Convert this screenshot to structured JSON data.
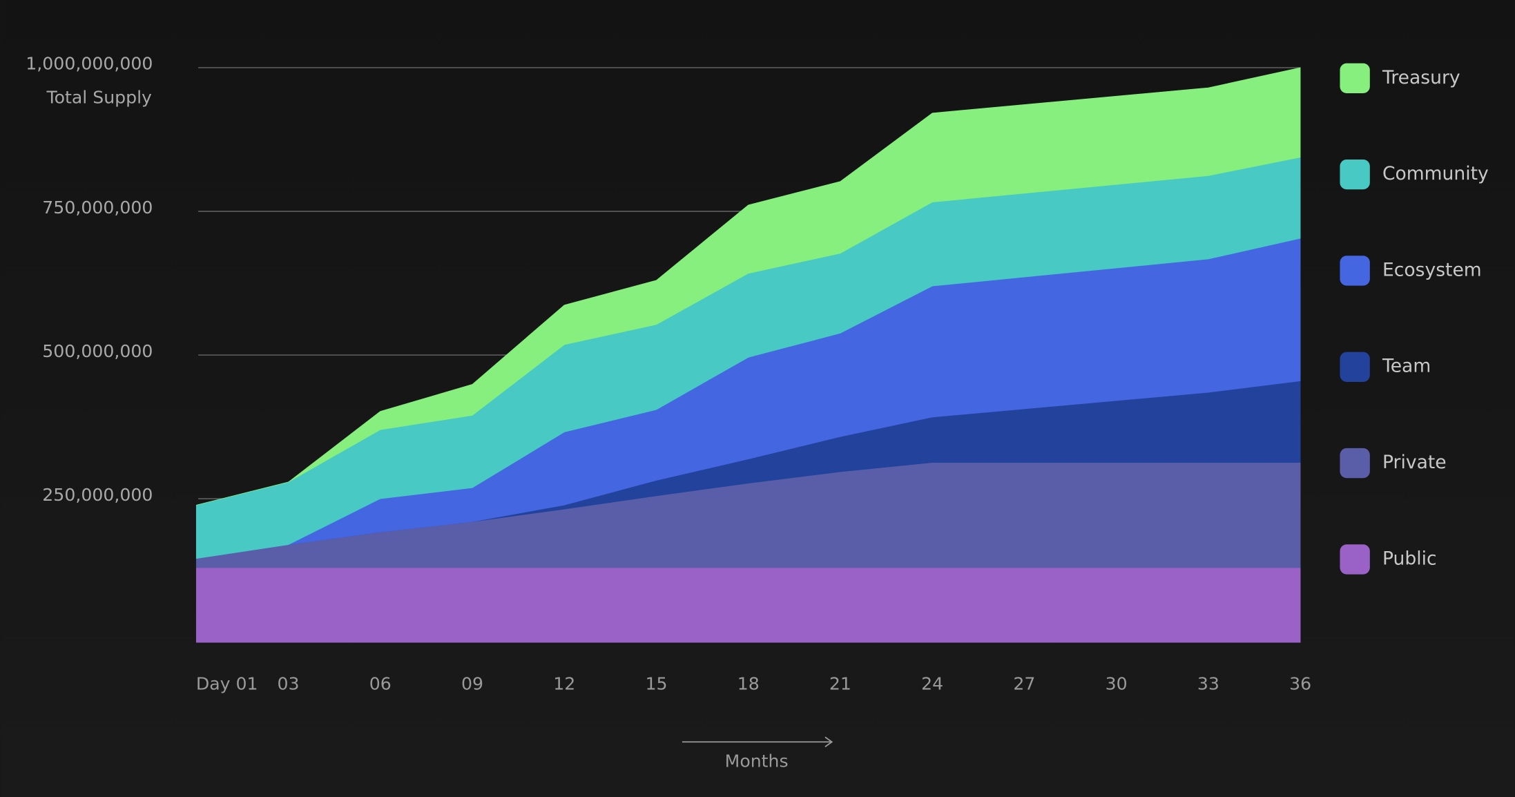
{
  "chart_data": {
    "type": "stacked-area",
    "ylabel": "Total Supply",
    "xlabel": "Months",
    "x": [
      0,
      3,
      6,
      9,
      12,
      15,
      18,
      21,
      24,
      33,
      36
    ],
    "xlim": [
      0,
      36
    ],
    "xticks": [
      {
        "value": 1,
        "label": "Day 01"
      },
      {
        "value": 3,
        "label": "03"
      },
      {
        "value": 6,
        "label": "06"
      },
      {
        "value": 9,
        "label": "09"
      },
      12,
      15,
      18,
      21,
      24,
      27,
      30,
      33,
      36
    ],
    "ylim": [
      0,
      1000000000
    ],
    "yticks": [
      {
        "value": 250000000,
        "label": "250,000,000"
      },
      {
        "value": 500000000,
        "label": "500,000,000"
      },
      {
        "value": 750000000,
        "label": "750,000,000"
      },
      {
        "value": 1000000000,
        "label": "1,000,000,000"
      }
    ],
    "grid": true,
    "series": [
      {
        "name": "Public",
        "color": "#9a62c6",
        "values": [
          130000000,
          130000000,
          130000000,
          130000000,
          130000000,
          130000000,
          130000000,
          130000000,
          130000000,
          130000000,
          130000000
        ]
      },
      {
        "name": "Private",
        "color": "#5a5ea8",
        "values": [
          16000000,
          40000000,
          62000000,
          80000000,
          102000000,
          125000000,
          147000000,
          167000000,
          183000000,
          183000000,
          183000000
        ]
      },
      {
        "name": "Team",
        "color": "#22429c",
        "values": [
          0,
          0,
          0,
          0,
          7000000,
          27000000,
          42000000,
          61000000,
          79000000,
          122000000,
          142000000
        ]
      },
      {
        "name": "Ecosystem",
        "color": "#4466e0",
        "values": [
          0,
          0,
          58000000,
          59000000,
          127000000,
          123000000,
          177000000,
          180000000,
          228000000,
          232000000,
          248000000
        ]
      },
      {
        "name": "Community",
        "color": "#48c9c4",
        "values": [
          93000000,
          109000000,
          120000000,
          126000000,
          152000000,
          148000000,
          146000000,
          139000000,
          146000000,
          145000000,
          141000000
        ]
      },
      {
        "name": "Treasury",
        "color": "#86ef7d",
        "values": [
          0,
          0,
          32000000,
          54000000,
          69000000,
          77000000,
          119000000,
          125000000,
          155000000,
          153000000,
          156000000
        ]
      }
    ]
  }
}
